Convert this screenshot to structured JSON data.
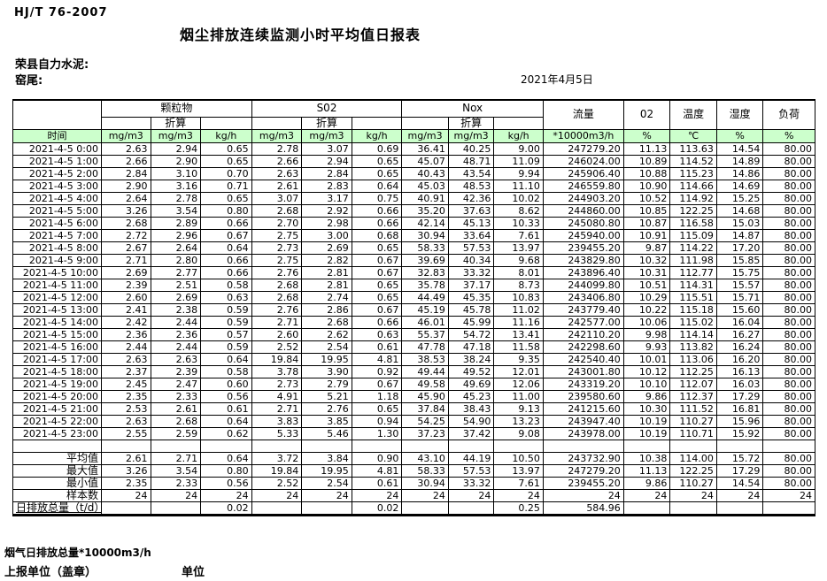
{
  "page": {
    "standard_code": "HJ/T  76-2007",
    "title": "烟尘排放连续监测小时平均值日报表",
    "company": "荣县自力水泥:",
    "location": "窑尾:",
    "date": "2021年4月5日"
  },
  "colors": {
    "header_green": "#ccffcc",
    "border": "#000000"
  },
  "table": {
    "time_header": "时间",
    "groups": {
      "particulate": "颗粒物",
      "so2": "S02",
      "nox": "Nox"
    },
    "converted_label": "折算",
    "flow_header": "流量",
    "o2_header": "02",
    "temperature_header": "温度",
    "humidity_header": "湿度",
    "load_header": "负荷",
    "units": [
      "mg/m3",
      "mg/m3",
      "kg/h",
      "mg/m3",
      "mg/m3",
      "kg/h",
      "mg/m3",
      "mg/m3",
      "kg/h",
      "*10000m3/h",
      "%",
      "℃",
      "%",
      "%"
    ],
    "rows": [
      [
        "2021-4-5 0:00",
        "2.63",
        "2.94",
        "0.65",
        "2.78",
        "3.07",
        "0.69",
        "36.41",
        "40.25",
        "9.00",
        "247279.20",
        "11.13",
        "113.63",
        "14.54",
        "80.00"
      ],
      [
        "2021-4-5 1:00",
        "2.66",
        "2.90",
        "0.65",
        "2.66",
        "2.94",
        "0.65",
        "45.07",
        "48.71",
        "11.09",
        "246024.00",
        "10.89",
        "114.52",
        "14.89",
        "80.00"
      ],
      [
        "2021-4-5 2:00",
        "2.84",
        "3.10",
        "0.70",
        "2.63",
        "2.84",
        "0.65",
        "40.43",
        "43.54",
        "9.94",
        "245906.40",
        "10.88",
        "115.23",
        "14.86",
        "80.00"
      ],
      [
        "2021-4-5 3:00",
        "2.90",
        "3.16",
        "0.71",
        "2.61",
        "2.83",
        "0.64",
        "45.03",
        "48.53",
        "11.10",
        "246559.80",
        "10.90",
        "114.66",
        "14.69",
        "80.00"
      ],
      [
        "2021-4-5 4:00",
        "2.64",
        "2.78",
        "0.65",
        "3.07",
        "3.17",
        "0.75",
        "40.91",
        "42.36",
        "10.02",
        "244903.20",
        "10.52",
        "114.92",
        "15.25",
        "80.00"
      ],
      [
        "2021-4-5 5:00",
        "3.26",
        "3.54",
        "0.80",
        "2.68",
        "2.92",
        "0.66",
        "35.20",
        "37.63",
        "8.62",
        "244860.00",
        "10.85",
        "122.25",
        "14.68",
        "80.00"
      ],
      [
        "2021-4-5 6:00",
        "2.68",
        "2.89",
        "0.66",
        "2.70",
        "2.98",
        "0.66",
        "42.14",
        "45.13",
        "10.33",
        "245080.80",
        "10.87",
        "116.58",
        "15.03",
        "80.00"
      ],
      [
        "2021-4-5 7:00",
        "2.72",
        "2.96",
        "0.67",
        "2.75",
        "3.00",
        "0.68",
        "30.94",
        "33.64",
        "7.61",
        "245940.00",
        "10.91",
        "115.09",
        "14.87",
        "80.00"
      ],
      [
        "2021-4-5 8:00",
        "2.67",
        "2.64",
        "0.64",
        "2.73",
        "2.69",
        "0.65",
        "58.33",
        "57.53",
        "13.97",
        "239455.20",
        "9.87",
        "114.22",
        "17.20",
        "80.00"
      ],
      [
        "2021-4-5 9:00",
        "2.71",
        "2.80",
        "0.66",
        "2.75",
        "2.82",
        "0.67",
        "39.69",
        "40.34",
        "9.68",
        "243829.80",
        "10.32",
        "111.98",
        "15.85",
        "80.00"
      ],
      [
        "2021-4-5 10:00",
        "2.69",
        "2.77",
        "0.66",
        "2.76",
        "2.81",
        "0.67",
        "32.83",
        "33.32",
        "8.01",
        "243896.40",
        "10.31",
        "112.77",
        "15.75",
        "80.00"
      ],
      [
        "2021-4-5 11:00",
        "2.39",
        "2.51",
        "0.58",
        "2.68",
        "2.81",
        "0.65",
        "35.78",
        "37.17",
        "8.73",
        "244099.80",
        "10.51",
        "114.31",
        "15.57",
        "80.00"
      ],
      [
        "2021-4-5 12:00",
        "2.60",
        "2.69",
        "0.63",
        "2.68",
        "2.74",
        "0.65",
        "44.49",
        "45.35",
        "10.83",
        "243406.80",
        "10.29",
        "115.51",
        "15.71",
        "80.00"
      ],
      [
        "2021-4-5 13:00",
        "2.41",
        "2.38",
        "0.59",
        "2.76",
        "2.86",
        "0.67",
        "45.19",
        "45.78",
        "11.02",
        "243779.40",
        "10.22",
        "115.18",
        "15.60",
        "80.00"
      ],
      [
        "2021-4-5 14:00",
        "2.42",
        "2.44",
        "0.59",
        "2.71",
        "2.68",
        "0.66",
        "46.01",
        "45.99",
        "11.16",
        "242577.00",
        "10.06",
        "115.02",
        "16.04",
        "80.00"
      ],
      [
        "2021-4-5 15:00",
        "2.36",
        "2.36",
        "0.57",
        "2.60",
        "2.62",
        "0.63",
        "55.37",
        "54.72",
        "13.41",
        "242110.20",
        "9.98",
        "114.14",
        "16.27",
        "80.00"
      ],
      [
        "2021-4-5 16:00",
        "2.44",
        "2.44",
        "0.59",
        "2.52",
        "2.54",
        "0.61",
        "47.78",
        "47.18",
        "11.58",
        "242298.60",
        "9.93",
        "113.82",
        "16.24",
        "80.00"
      ],
      [
        "2021-4-5 17:00",
        "2.63",
        "2.63",
        "0.64",
        "19.84",
        "19.95",
        "4.81",
        "38.53",
        "38.24",
        "9.35",
        "242540.40",
        "10.01",
        "113.06",
        "16.20",
        "80.00"
      ],
      [
        "2021-4-5 18:00",
        "2.37",
        "2.39",
        "0.58",
        "3.78",
        "3.90",
        "0.92",
        "49.44",
        "49.52",
        "12.01",
        "243001.80",
        "10.12",
        "112.25",
        "16.13",
        "80.00"
      ],
      [
        "2021-4-5 19:00",
        "2.45",
        "2.47",
        "0.60",
        "2.73",
        "2.79",
        "0.67",
        "49.58",
        "49.69",
        "12.06",
        "243319.20",
        "10.10",
        "112.07",
        "16.03",
        "80.00"
      ],
      [
        "2021-4-5 20:00",
        "2.35",
        "2.33",
        "0.56",
        "4.91",
        "5.21",
        "1.18",
        "45.90",
        "45.23",
        "11.00",
        "239580.60",
        "9.86",
        "112.37",
        "17.29",
        "80.00"
      ],
      [
        "2021-4-5 21:00",
        "2.53",
        "2.61",
        "0.61",
        "2.71",
        "2.76",
        "0.65",
        "37.84",
        "38.43",
        "9.13",
        "241215.60",
        "10.30",
        "111.52",
        "16.81",
        "80.00"
      ],
      [
        "2021-4-5 22:00",
        "2.63",
        "2.68",
        "0.64",
        "3.83",
        "3.85",
        "0.94",
        "54.25",
        "54.90",
        "13.23",
        "243947.40",
        "10.19",
        "110.27",
        "15.96",
        "80.00"
      ],
      [
        "2021-4-5 23:00",
        "2.55",
        "2.59",
        "0.62",
        "5.33",
        "5.46",
        "1.30",
        "37.23",
        "37.42",
        "9.08",
        "243978.00",
        "10.19",
        "110.71",
        "15.92",
        "80.00"
      ]
    ],
    "summary_rows": [
      [
        "平均值",
        "2.61",
        "2.71",
        "0.64",
        "3.72",
        "3.84",
        "0.90",
        "43.10",
        "44.19",
        "10.50",
        "243732.90",
        "10.38",
        "114.00",
        "15.72",
        "80.00"
      ],
      [
        "最大值",
        "3.26",
        "3.54",
        "0.80",
        "19.84",
        "19.95",
        "4.81",
        "58.33",
        "57.53",
        "13.97",
        "247279.20",
        "11.13",
        "122.25",
        "17.29",
        "80.00"
      ],
      [
        "最小值",
        "2.35",
        "2.33",
        "0.56",
        "2.52",
        "2.54",
        "0.61",
        "30.94",
        "33.32",
        "7.61",
        "239455.20",
        "9.86",
        "110.27",
        "14.54",
        "80.00"
      ],
      [
        "样本数",
        "24",
        "24",
        "24",
        "24",
        "24",
        "24",
        "24",
        "24",
        "24",
        "24",
        "24",
        "24",
        "24",
        "24"
      ],
      [
        "日排放总量（t/d）",
        "",
        "",
        "0.02",
        "",
        "",
        "0.02",
        "",
        "",
        "0.25",
        "584.96",
        "",
        "",
        "",
        ""
      ]
    ]
  },
  "footer": {
    "flow_total_note": "烟气日排放总量*10000m3/h",
    "reporting_unit_label": "上报单位（盖章）",
    "unit_label": "单位"
  }
}
